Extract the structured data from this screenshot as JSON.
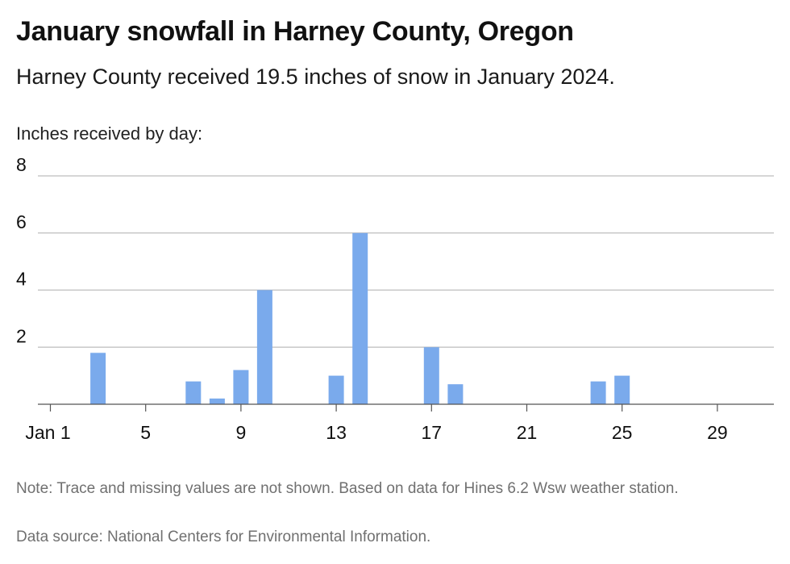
{
  "header": {
    "title": "January snowfall in Harney County, Oregon",
    "subtitle": "Harney County received 19.5 inches of snow in January 2024."
  },
  "footer": {
    "note": "Note: Trace and missing values are not shown. Based on data for Hines 6.2 Wsw weather station.",
    "source": "Data source: National Centers for Environmental Information."
  },
  "chart_data": {
    "type": "bar",
    "title": "January snowfall in Harney County, Oregon",
    "subtitle": "Harney County received 19.5 inches of snow in January 2024.",
    "ylabel": "Inches received by day:",
    "xlabel": "",
    "ylim": [
      0,
      8
    ],
    "yticks": [
      2,
      4,
      6,
      8
    ],
    "xlim": [
      1,
      31
    ],
    "xticks": [
      {
        "day": 1,
        "label": "Jan 1"
      },
      {
        "day": 5,
        "label": "5"
      },
      {
        "day": 9,
        "label": "9"
      },
      {
        "day": 13,
        "label": "13"
      },
      {
        "day": 17,
        "label": "17"
      },
      {
        "day": 21,
        "label": "21"
      },
      {
        "day": 25,
        "label": "25"
      },
      {
        "day": 29,
        "label": "29"
      }
    ],
    "grid": true,
    "bar_color": "#7aaaec",
    "days": [
      3,
      7,
      8,
      9,
      10,
      13,
      14,
      17,
      18,
      24,
      25
    ],
    "values": [
      1.8,
      0.8,
      0.2,
      1.2,
      4.0,
      1.0,
      6.0,
      2.0,
      0.7,
      0.8,
      1.0
    ]
  }
}
